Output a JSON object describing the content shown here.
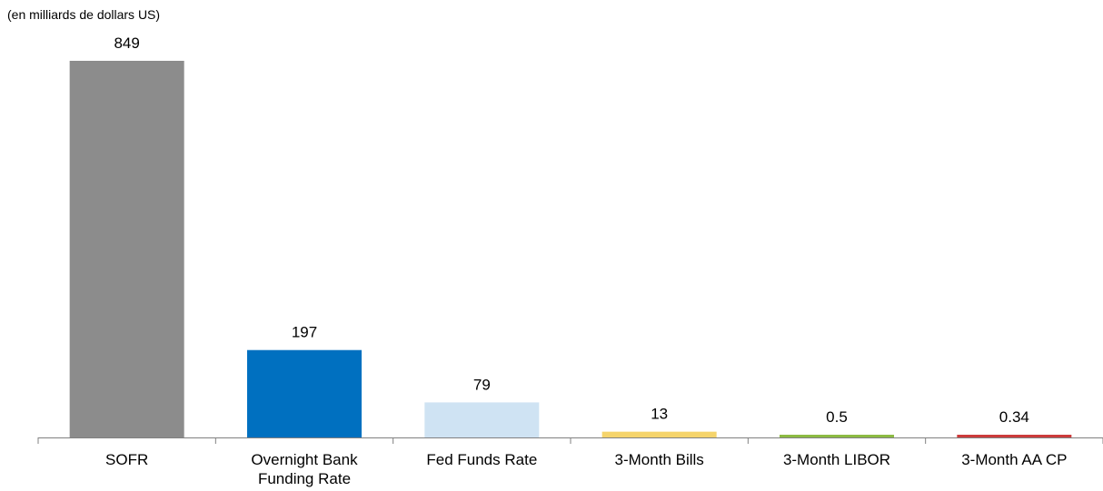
{
  "chart_data": {
    "type": "bar",
    "unit_label": "(en milliards de dollars US)",
    "categories": [
      "SOFR",
      "Overnight Bank Funding Rate",
      "Fed Funds Rate",
      "3-Month Bills",
      "3-Month LIBOR",
      "3-Month AA CP"
    ],
    "category_lines": [
      [
        "SOFR"
      ],
      [
        "Overnight Bank",
        "Funding Rate"
      ],
      [
        "Fed Funds Rate"
      ],
      [
        "3-Month Bills"
      ],
      [
        "3-Month LIBOR"
      ],
      [
        "3-Month AA CP"
      ]
    ],
    "values": [
      849,
      197,
      79,
      13,
      0.5,
      0.34
    ],
    "value_labels": [
      "849",
      "197",
      "79",
      "13",
      "0.5",
      "0.34"
    ],
    "colors": [
      "#8c8c8c",
      "#0070c0",
      "#cfe3f3",
      "#f5d46b",
      "#8dbb43",
      "#cc3b3b"
    ],
    "ylim": [
      0,
      849
    ],
    "grid": false,
    "legend": "none"
  }
}
